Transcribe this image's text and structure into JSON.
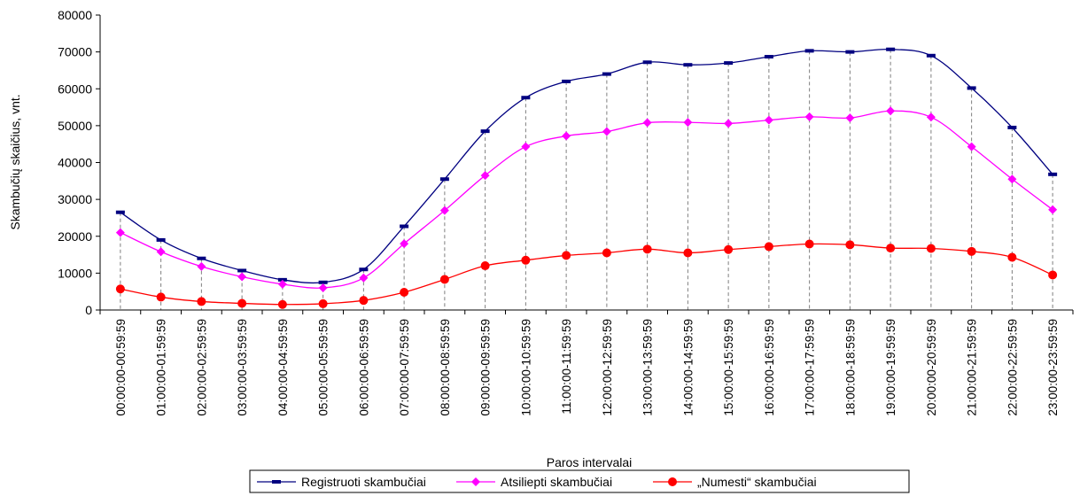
{
  "chart_data": {
    "type": "line",
    "title": "",
    "xlabel": "Paros intervalai",
    "ylabel": "Skambučių skaičius, vnt.",
    "ylim": [
      0,
      80000
    ],
    "yticks": [
      0,
      10000,
      20000,
      30000,
      40000,
      50000,
      60000,
      70000,
      80000
    ],
    "grid": false,
    "drop_lines": true,
    "legend_position": "bottom",
    "categories": [
      "00:00:00-00:59:59",
      "01:00:00-01:59:59",
      "02:00:00-02:59:59",
      "03:00:00-03:59:59",
      "04:00:00-04:59:59",
      "05:00:00-05:59:59",
      "06:00:00-06:59:59",
      "07:00:00-07:59:59",
      "08:00:00-08:59:59",
      "09:00:00-09:59:59",
      "10:00:00-10:59:59",
      "11:00:00-11:59:59",
      "12:00:00-12:59:59",
      "13:00:00-13:59:59",
      "14:00:00-14:59:59",
      "15:00:00-15:59:59",
      "16:00:00-16:59:59",
      "17:00:00-17:59:59",
      "18:00:00-18:59:59",
      "19:00:00-19:59:59",
      "20:00:00-20:59:59",
      "21:00:00-21:59:59",
      "22:00:00-22:59:59",
      "23:00:00-23:59:59"
    ],
    "series": [
      {
        "name": "Registruoti skambučiai",
        "color": "#000080",
        "marker": "dash",
        "values": [
          26500,
          19000,
          14000,
          10700,
          8200,
          7500,
          11000,
          22700,
          35500,
          48500,
          57600,
          62000,
          64000,
          67200,
          66500,
          67000,
          68700,
          70300,
          70000,
          70700,
          69000,
          60200,
          49500,
          36800
        ]
      },
      {
        "name": "Atsiliepti skambučiai",
        "color": "#ff00ff",
        "marker": "diamond",
        "values": [
          21000,
          15800,
          11800,
          9000,
          7000,
          6000,
          8700,
          18000,
          27000,
          36500,
          44300,
          47200,
          48400,
          50800,
          50900,
          50600,
          51500,
          52400,
          52100,
          54000,
          52300,
          44300,
          35500,
          27200
        ]
      },
      {
        "name": "„Numesti“ skambučiai",
        "color": "#ff0000",
        "marker": "circle",
        "values": [
          5700,
          3500,
          2300,
          1800,
          1500,
          1700,
          2600,
          4800,
          8300,
          12000,
          13500,
          14800,
          15500,
          16500,
          15500,
          16400,
          17200,
          17900,
          17700,
          16800,
          16700,
          15900,
          14300,
          9500
        ]
      }
    ]
  }
}
